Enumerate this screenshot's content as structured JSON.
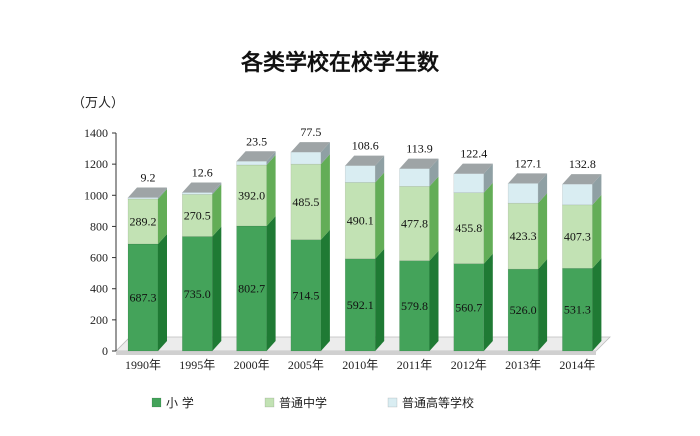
{
  "chart_data": {
    "type": "bar",
    "stacked": true,
    "title": "各类学校在校学生数",
    "unit_label": "（万人）",
    "categories": [
      "1990年",
      "1995年",
      "2000年",
      "2005年",
      "2010年",
      "2011年",
      "2012年",
      "2013年",
      "2014年"
    ],
    "ylim": [
      0,
      1400
    ],
    "yticks": [
      0,
      200,
      400,
      600,
      800,
      1000,
      1200,
      1400
    ],
    "legend_position": "bottom",
    "series": [
      {
        "name": "小  学",
        "values": [
          687.3,
          735.0,
          802.7,
          714.5,
          592.1,
          579.8,
          560.7,
          526.0,
          531.3
        ],
        "color": "#44a35a",
        "side_color": "#1f7a34",
        "top_color": "#9ad29a"
      },
      {
        "name": "普通中学",
        "values": [
          289.2,
          270.5,
          392.0,
          485.5,
          490.1,
          477.8,
          455.8,
          423.3,
          407.3
        ],
        "color": "#c2e2b4",
        "side_color": "#63ad57",
        "top_color": "#e6f4dd"
      },
      {
        "name": "普通高等学校",
        "values": [
          9.2,
          12.6,
          23.5,
          77.5,
          108.6,
          113.9,
          122.4,
          127.1,
          132.8
        ],
        "color": "#d9edf2",
        "side_color": "#8fa0a4",
        "top_color": "#9ea4a6"
      }
    ],
    "grid": false
  }
}
